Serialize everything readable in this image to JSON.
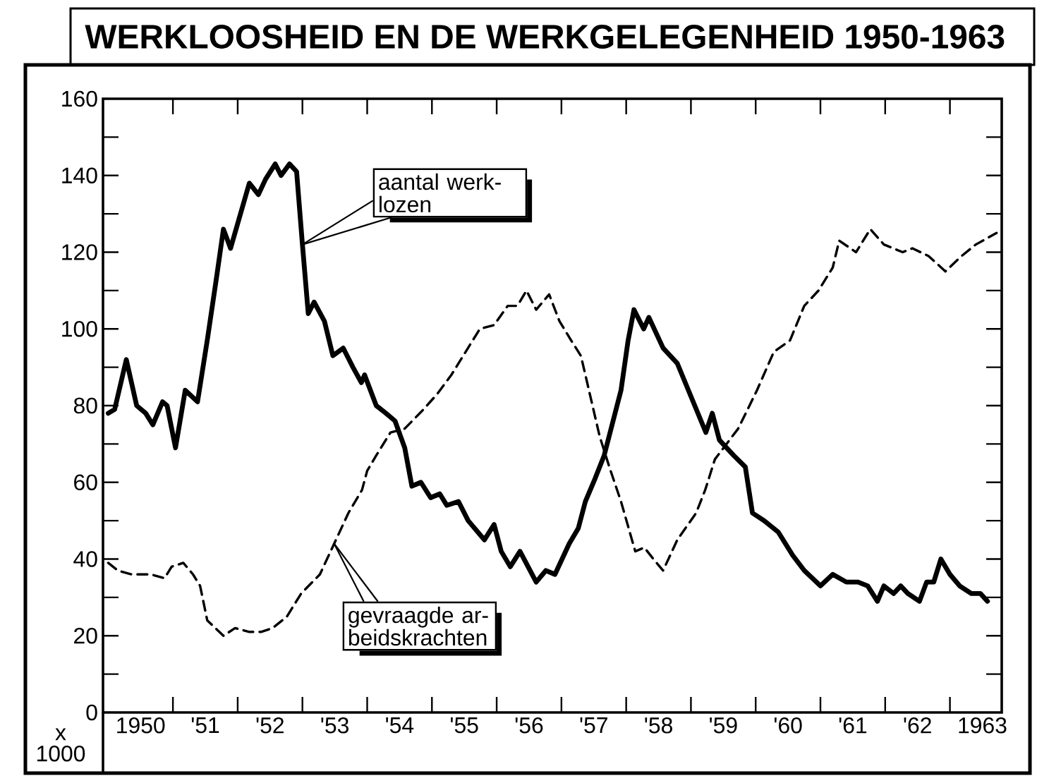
{
  "chart_data": {
    "type": "line",
    "title": "WERKLOOSHEID EN DE WERKGELEGENHEID 1950-1963",
    "ylabel": "x 1000",
    "xlim": [
      1949.42,
      1963.3
    ],
    "ylim": [
      0,
      160
    ],
    "xticks": [
      1950,
      {
        "value": 1950.5,
        "label": null
      },
      {
        "value": 1951,
        "label": "'51"
      },
      {
        "value": 1951.5,
        "label": null
      },
      {
        "value": 1952,
        "label": "'52"
      },
      {
        "value": 1952.5,
        "label": null
      },
      {
        "value": 1953,
        "label": "'53"
      },
      {
        "value": 1953.5,
        "label": null
      },
      {
        "value": 1954,
        "label": "'54"
      },
      {
        "value": 1954.5,
        "label": null
      },
      {
        "value": 1955,
        "label": "'55"
      },
      {
        "value": 1955.5,
        "label": null
      },
      {
        "value": 1956,
        "label": "'56"
      },
      {
        "value": 1956.5,
        "label": null
      },
      {
        "value": 1957,
        "label": "'57"
      },
      {
        "value": 1957.5,
        "label": null
      },
      {
        "value": 1958,
        "label": "'58"
      },
      {
        "value": 1958.5,
        "label": null
      },
      {
        "value": 1959,
        "label": "'59"
      },
      {
        "value": 1959.5,
        "label": null
      },
      {
        "value": 1960,
        "label": "'60"
      },
      {
        "value": 1960.5,
        "label": null
      },
      {
        "value": 1961,
        "label": "'61"
      },
      {
        "value": 1961.5,
        "label": null
      },
      {
        "value": 1962,
        "label": "'62"
      },
      {
        "value": 1962.5,
        "label": null
      },
      1963
    ],
    "yticks": [
      0,
      {
        "value": 10,
        "label": null
      },
      20,
      {
        "value": 30,
        "label": null
      },
      40,
      {
        "value": 50,
        "label": null
      },
      60,
      {
        "value": 70,
        "label": null
      },
      80,
      {
        "value": 90,
        "label": null
      },
      100,
      {
        "value": 110,
        "label": null
      },
      120,
      {
        "value": 130,
        "label": null
      },
      140,
      {
        "value": 150,
        "label": null
      },
      160
    ],
    "series": [
      {
        "color": "#000000",
        "line_style": "solid",
        "x": [
          1949.5,
          1949.6,
          1949.78,
          1949.94,
          1950.08,
          1950.19,
          1950.34,
          1950.41,
          1950.54,
          1950.69,
          1950.88,
          1951.03,
          1951.17,
          1951.28,
          1951.39,
          1951.68,
          1951.82,
          1951.93,
          1952.08,
          1952.17,
          1952.3,
          1952.41,
          1952.5,
          1952.59,
          1952.68,
          1952.84,
          1952.97,
          1953.13,
          1953.28,
          1953.41,
          1953.46,
          1953.64,
          1953.79,
          1953.93,
          1954.08,
          1954.19,
          1954.33,
          1954.48,
          1954.62,
          1954.73,
          1954.91,
          1955.06,
          1955.31,
          1955.46,
          1955.57,
          1955.71,
          1955.86,
          1956.11,
          1956.26,
          1956.4,
          1956.62,
          1956.76,
          1956.87,
          1957.02,
          1957.16,
          1957.42,
          1957.53,
          1957.62,
          1957.77,
          1957.85,
          1958.07,
          1958.29,
          1958.51,
          1958.73,
          1958.83,
          1958.94,
          1959.16,
          1959.34,
          1959.45,
          1959.63,
          1959.85,
          1960.07,
          1960.25,
          1960.5,
          1960.69,
          1960.9,
          1961.08,
          1961.23,
          1961.38,
          1961.48,
          1961.63,
          1961.74,
          1961.85,
          1962.03,
          1962.14,
          1962.25,
          1962.36,
          1962.5,
          1962.65,
          1962.83,
          1962.97,
          1963.08
        ],
        "values": [
          78,
          79,
          92,
          80,
          78,
          75,
          81,
          80,
          69,
          84,
          81,
          97,
          113,
          126,
          121,
          138,
          135,
          139,
          143,
          140,
          143,
          141,
          122,
          104,
          107,
          102,
          93,
          95,
          90,
          86,
          88,
          80,
          78,
          76,
          69,
          59,
          60,
          56,
          57,
          54,
          55,
          50,
          45,
          49,
          42,
          38,
          42,
          34,
          37,
          36,
          44,
          48,
          55,
          61,
          67,
          84,
          97,
          105,
          100,
          103,
          95,
          91,
          82,
          73,
          78,
          71,
          67,
          64,
          52,
          50,
          47,
          41,
          37,
          33,
          36,
          34,
          34,
          33,
          29,
          33,
          31,
          33,
          31,
          29,
          34,
          34,
          40,
          36,
          33,
          31,
          31,
          29
        ]
      },
      {
        "color": "#000000",
        "line_style": "dashed",
        "x": [
          1949.5,
          1949.65,
          1949.86,
          1950.16,
          1950.37,
          1950.48,
          1950.66,
          1950.81,
          1950.92,
          1951.03,
          1951.28,
          1951.46,
          1951.68,
          1951.86,
          1952.04,
          1952.26,
          1952.48,
          1952.77,
          1952.99,
          1953.21,
          1953.42,
          1953.5,
          1953.64,
          1953.86,
          1954.08,
          1954.37,
          1954.58,
          1954.8,
          1955.02,
          1955.24,
          1955.46,
          1955.67,
          1955.82,
          1955.96,
          1956.11,
          1956.31,
          1956.47,
          1956.65,
          1956.8,
          1956.87,
          1956.98,
          1957.09,
          1957.24,
          1957.42,
          1957.64,
          1957.78,
          1957.92,
          1958.07,
          1958.29,
          1958.58,
          1958.72,
          1958.87,
          1959.23,
          1959.52,
          1959.78,
          1960.03,
          1960.25,
          1960.47,
          1960.69,
          1960.79,
          1961.05,
          1961.27,
          1961.48,
          1961.77,
          1961.92,
          1962.17,
          1962.43,
          1962.68,
          1962.9,
          1963.22
        ],
        "values": [
          39,
          37,
          36,
          36,
          35,
          38,
          39,
          36,
          33,
          24,
          20,
          22,
          21,
          21,
          22,
          25,
          31,
          36,
          44,
          52,
          58,
          63,
          67,
          73,
          74,
          79,
          83,
          88,
          94,
          100,
          101,
          106,
          106,
          110,
          105,
          109,
          102,
          97,
          93,
          88,
          80,
          72,
          64,
          55,
          42,
          43,
          40,
          37,
          45,
          52,
          58,
          66,
          74,
          84,
          94,
          97,
          106,
          110,
          116,
          123,
          120,
          126,
          122,
          120,
          121,
          119,
          115,
          119,
          122,
          125
        ]
      }
    ],
    "annotations": [
      {
        "text": "aantal werk-lozen",
        "x": 1952.5,
        "y": 122
      },
      {
        "text": "gevraagde ar-beidskrachten",
        "x": 1952.99,
        "y": 44
      }
    ]
  }
}
